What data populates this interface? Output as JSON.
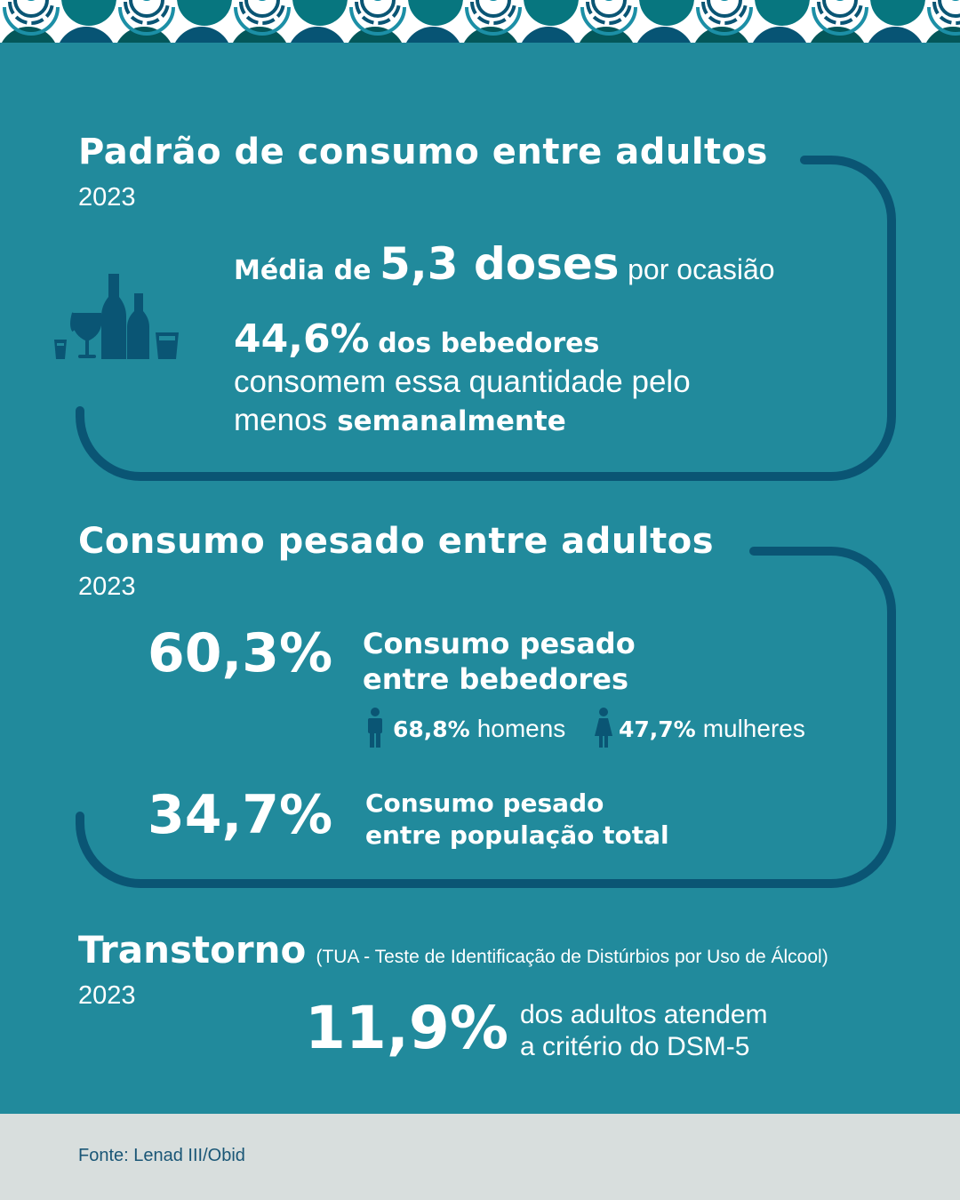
{
  "colors": {
    "background": "#218a9c",
    "line": "#0a5574",
    "icon": "#0a5574",
    "footer_bg": "#d8dedd",
    "footer_text": "#1a5676",
    "pattern_teal": "#07767f",
    "pattern_green": "#04575a",
    "pattern_blue": "#075474"
  },
  "section1": {
    "title": "Padrão de consumo entre adultos",
    "year": "2023",
    "icon": "bottles-glasses-icon",
    "line1_prefix": "Média de",
    "line1_big": "5,3 doses",
    "line1_suffix": "por ocasião",
    "stat_value": "44,6%",
    "stat_bold": "dos bebedores",
    "stat_line2": "consomem essa quantidade pelo",
    "stat_line3_prefix": "menos",
    "stat_line3_bold": "semanalmente"
  },
  "section2": {
    "title": "Consumo pesado entre adultos",
    "year": "2023",
    "stat1_value": "60,3%",
    "stat1_label_line1": "Consumo pesado",
    "stat1_label_line2": "entre bebedores",
    "men_icon": "man-icon",
    "men_value": "68,8%",
    "men_label": "homens",
    "women_icon": "woman-icon",
    "women_value": "47,7%",
    "women_label": "mulheres",
    "stat2_value": "34,7%",
    "stat2_label_line1": "Consumo pesado",
    "stat2_label_line2": "entre população total"
  },
  "section3": {
    "title": "Transtorno",
    "subtitle": "(TUA - Teste de Identificação de Distúrbios por Uso de Álcool)",
    "year": "2023",
    "stat_value": "11,9%",
    "stat_line1": "dos adultos atendem",
    "stat_line2": "a critério do DSM-5"
  },
  "footer": {
    "source": "Fonte: Lenad III/Obid"
  }
}
